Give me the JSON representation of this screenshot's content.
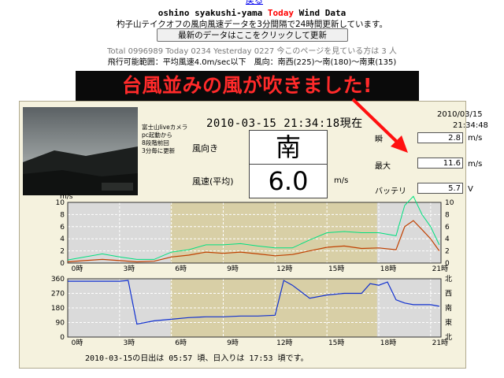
{
  "header": {
    "top_link": "戻る",
    "title_prefix": "oshino syakushi-yama ",
    "title_today": "Today",
    "title_suffix": " Wind Data",
    "subtitle": "杓子山テイクオフの風向風速データを3分間隔で24時間更新しています。",
    "refresh_button": "最新のデータはここをクリックして更新",
    "counter_text": "Total 0996989 Today 0234 Yesterday 0227 今このページを見ている方は 3 人",
    "range_text": "飛行可能範囲：平均風速4.0m/sec以下　風向：南西(225)～南(180)～南東(135)"
  },
  "banner": {
    "text": "台風並みの風が吹きました!"
  },
  "camera": {
    "caption_lines": [
      "富士山liveカメラ",
      "pc起動から",
      "8段階前回",
      "3分毎に更新"
    ]
  },
  "current": {
    "datetime": "2010-03-15 21:34:18現在",
    "direction_label": "風向き",
    "direction_value": "南",
    "speed_label": "風速(平均)",
    "speed_value": "6.0",
    "speed_unit": "m/s"
  },
  "right_panel": {
    "date": "2010/03/15",
    "time": "21:34:48",
    "rows": [
      {
        "label": "瞬",
        "value": "2.8",
        "unit": "m/s"
      },
      {
        "label": "最大",
        "value": "11.6",
        "unit": "m/s"
      },
      {
        "label": "バッテリ",
        "value": "5.7",
        "unit": "V"
      }
    ]
  },
  "speed_chart": {
    "y_unit": "m/s",
    "y_ticks": [
      "10",
      "8",
      "6",
      "4",
      "2",
      "0"
    ],
    "x_ticks": [
      "0時",
      "3時",
      "6時",
      "9時",
      "12時",
      "15時",
      "18時",
      "21時"
    ]
  },
  "dir_chart": {
    "y_ticks": [
      "360",
      "270",
      "180",
      "90",
      "0"
    ],
    "dir_labels": [
      "北",
      "西",
      "南",
      "東",
      "北"
    ],
    "x_ticks": [
      "0時",
      "3時",
      "6時",
      "9時",
      "12時",
      "15時",
      "18時",
      "21時"
    ]
  },
  "sun": {
    "text": "2010-03-15の日出は 05:57 頃、日入りは 17:53 頃です。"
  },
  "colors": {
    "banner_text": "#ff2a2a",
    "banner_bg": "#0a0a0a",
    "max_line": "#00e080",
    "avg_line": "#c04000",
    "dir_line": "#1030d0",
    "day_band": "#d8cfa6",
    "night_band": "#dadada"
  },
  "chart_data": [
    {
      "type": "line",
      "title": "",
      "xlabel": "",
      "ylabel": "m/s",
      "xlim": [
        0,
        21.6
      ],
      "ylim": [
        0,
        10
      ],
      "grid": true,
      "x": [
        0,
        1,
        2,
        3,
        4,
        5,
        6,
        7,
        8,
        9,
        10,
        11,
        12,
        13,
        14,
        15,
        16,
        17,
        18,
        19,
        19.5,
        20,
        20.5,
        21,
        21.5
      ],
      "series": [
        {
          "values": [
            0.5,
            1.0,
            1.5,
            1.0,
            0.6,
            0.6,
            1.8,
            2.2,
            3.0,
            3.0,
            3.2,
            2.8,
            2.5,
            2.5,
            3.8,
            5.0,
            5.2,
            5.0,
            5.0,
            4.5,
            9.5,
            11.0,
            8.0,
            6.0,
            3.0
          ]
        },
        {
          "values": [
            0.2,
            0.4,
            0.6,
            0.4,
            0.2,
            0.3,
            1.0,
            1.3,
            1.8,
            1.6,
            1.8,
            1.5,
            1.2,
            1.4,
            2.0,
            2.6,
            2.8,
            2.4,
            2.5,
            2.2,
            6.0,
            7.0,
            5.5,
            4.0,
            2.0
          ]
        }
      ]
    },
    {
      "type": "line",
      "title": "",
      "xlabel": "",
      "ylabel": "",
      "xlim": [
        0,
        21.6
      ],
      "ylim": [
        0,
        360
      ],
      "grid": true,
      "x": [
        0,
        1,
        2,
        3,
        3.5,
        4,
        5,
        6,
        7,
        8,
        9,
        10,
        11,
        12,
        12.5,
        13,
        14,
        15,
        16,
        17,
        17.5,
        18,
        18.5,
        19,
        19.5,
        20,
        21,
        21.5
      ],
      "series": [
        {
          "values": [
            345,
            345,
            345,
            345,
            350,
            80,
            100,
            110,
            120,
            125,
            125,
            130,
            130,
            135,
            350,
            320,
            240,
            260,
            270,
            270,
            330,
            320,
            340,
            230,
            210,
            200,
            200,
            190
          ]
        }
      ]
    }
  ]
}
